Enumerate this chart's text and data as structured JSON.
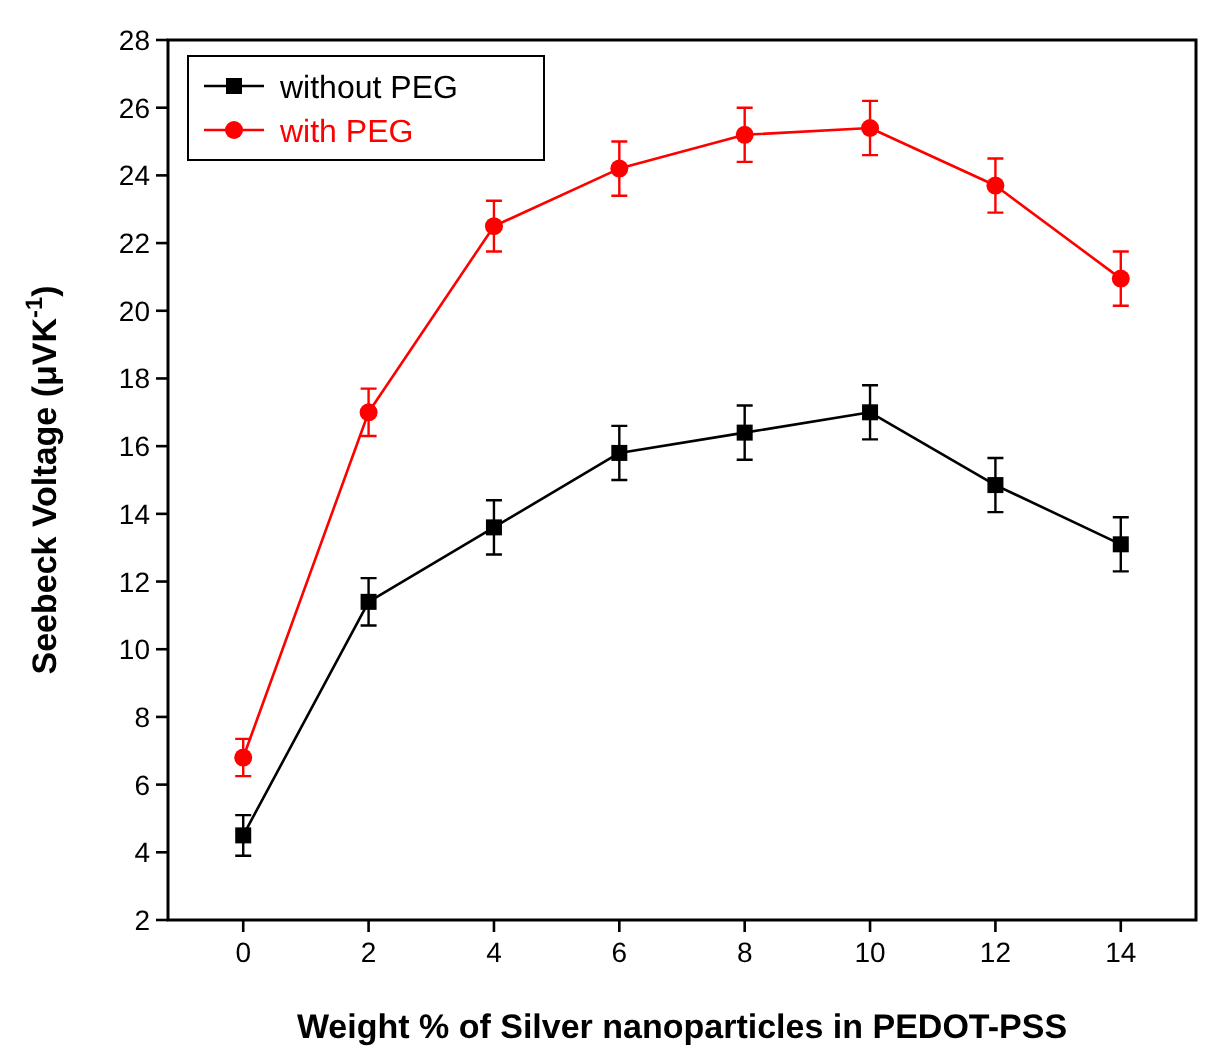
{
  "chart_data": {
    "type": "line",
    "xlabel": "Weight % of Silver nanoparticles in PEDOT-PSS",
    "ylabel": "Seebeck Voltage (μVK$^{-1}$)",
    "x": [
      0,
      2,
      4,
      6,
      8,
      10,
      12,
      14
    ],
    "series": [
      {
        "name": "without PEG",
        "color": "#000000",
        "marker": "square",
        "values": [
          4.5,
          11.4,
          13.6,
          15.8,
          16.4,
          17.0,
          14.85,
          13.1
        ],
        "errors": [
          0.6,
          0.7,
          0.8,
          0.8,
          0.8,
          0.8,
          0.8,
          0.8
        ]
      },
      {
        "name": "with PEG",
        "color": "#ff0000",
        "marker": "circle",
        "values": [
          6.8,
          17.0,
          22.5,
          24.2,
          25.2,
          25.4,
          23.7,
          20.95
        ],
        "errors": [
          0.55,
          0.7,
          0.75,
          0.8,
          0.8,
          0.8,
          0.8,
          0.8
        ]
      }
    ],
    "xlim": [
      -1.2,
      15.2
    ],
    "xticks": [
      0,
      2,
      4,
      6,
      8,
      10,
      12,
      14
    ],
    "ylim": [
      2,
      28
    ],
    "yticks": [
      2,
      4,
      6,
      8,
      10,
      12,
      14,
      16,
      18,
      20,
      22,
      24,
      26,
      28
    ],
    "grid": false,
    "legend": "top left",
    "line_style": "solid"
  }
}
